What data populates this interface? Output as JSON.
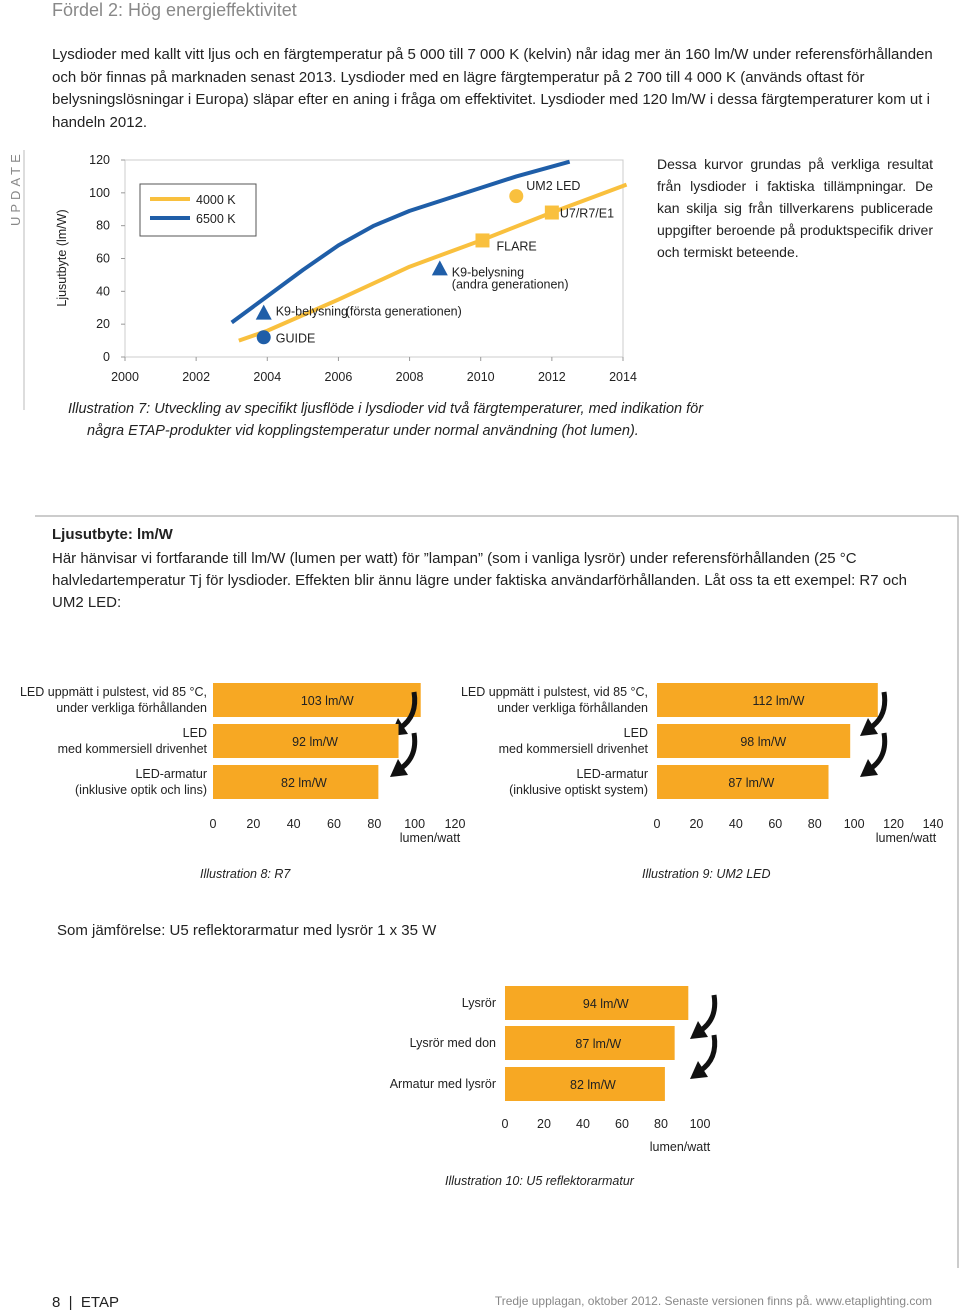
{
  "header": {
    "title": "Fördel 2: Hög energieffektivitet"
  },
  "intro": "Lysdioder med kallt vitt ljus och en färgtemperatur på 5 000 till 7 000 K (kelvin) når idag mer än 160 lm/W under referensförhållanden och bör finnas på marknaden senast 2013. Lysdioder med en lägre färgtemperatur på 2 700 till 4 000 K (används oftast för belysningslösningar i Europa) släpar efter en aning i fråga om effektivitet. Lysdioder med 120 lm/W i dessa färgtemperaturer kom ut i handeln 2012.",
  "side_label": "UPDATE",
  "side_note": "Dessa kurvor grundas på verkliga resultat från lysdioder i faktiska tillämpningar. De kan skilja sig från tillverkarens publicerade uppgifter beroende på produktspecifik driver och termiskt beteende.",
  "chart_data": [
    {
      "type": "line",
      "ylabel": "Ljusutbyte (lm/W)",
      "caption": "Illustration 7: Utveckling av specifikt ljusflöde i lysdioder vid två färgtemperaturer, med indikation för några ETAP-produkter vid kopplingstemperatur under normal användning (hot lumen).",
      "xlim": [
        2000,
        2014
      ],
      "xticks": [
        2000,
        2002,
        2004,
        2006,
        2008,
        2010,
        2012,
        2014
      ],
      "ylim": [
        0,
        120
      ],
      "yticks": [
        0,
        20,
        40,
        60,
        80,
        100,
        120
      ],
      "series": [
        {
          "name": "4000 K",
          "color": "#f9c03e",
          "x": [
            2003.2,
            2004,
            2006,
            2008,
            2010,
            2012,
            2014.1
          ],
          "values": [
            10,
            16,
            35,
            55,
            71,
            88,
            105
          ]
        },
        {
          "name": "6500 K",
          "color": "#1f5ea8",
          "x": [
            2003,
            2004,
            2005,
            2006,
            2007,
            2008,
            2009,
            2010,
            2011,
            2012.5
          ],
          "values": [
            21,
            37,
            53,
            68,
            80,
            89,
            96,
            103,
            110,
            119
          ]
        }
      ],
      "points": [
        {
          "label": "GUIDE",
          "shape": "circle",
          "color": "#1f5ea8",
          "x": 2003.9,
          "y": 12
        },
        {
          "label": "K9-belysning",
          "sublabel": "(första generationen)",
          "shape": "triangle",
          "color": "#1f5ea8",
          "x": 2003.9,
          "y": 27
        },
        {
          "label": "K9-belysning",
          "sublabel": "(andra generationen)",
          "shape": "triangle",
          "color": "#1f5ea8",
          "x": 2008.85,
          "y": 54
        },
        {
          "label": "FLARE",
          "shape": "square",
          "color": "#f9c03e",
          "x": 2010.05,
          "y": 71
        },
        {
          "label": "UM2 LED",
          "shape": "circle",
          "color": "#f9c03e",
          "x": 2011,
          "y": 98
        },
        {
          "label": "U7/R7/E1",
          "shape": "square",
          "color": "#f9c03e",
          "x": 2012,
          "y": 88
        }
      ]
    },
    {
      "type": "barh",
      "caption": "Illustration 8: R7",
      "xlabel": "lumen/watt",
      "color": "#f7a823",
      "categories": [
        [
          "LED uppmätt i pulstest, vid 85 °C,",
          "under verkliga förhållanden"
        ],
        [
          "LED",
          "med kommersiell drivenhet"
        ],
        [
          "LED-armatur",
          "(inklusive optik och lins)"
        ]
      ],
      "values": [
        103,
        92,
        82
      ],
      "value_labels": [
        "103 lm/W",
        "92 lm/W",
        "82 lm/W"
      ],
      "xlim": [
        0,
        120
      ],
      "xticks": [
        0,
        20,
        40,
        60,
        80,
        100,
        120
      ]
    },
    {
      "type": "barh",
      "caption": "Illustration 9: UM2 LED",
      "xlabel": "lumen/watt",
      "color": "#f7a823",
      "categories": [
        [
          "LED uppmätt i pulstest, vid 85 °C,",
          "under verkliga förhållanden"
        ],
        [
          "LED",
          "med kommersiell drivenhet"
        ],
        [
          "LED-armatur",
          "(inklusive optiskt system)"
        ]
      ],
      "values": [
        112,
        98,
        87
      ],
      "value_labels": [
        "112 lm/W",
        "98 lm/W",
        "87 lm/W"
      ],
      "xlim": [
        0,
        140
      ],
      "xticks": [
        0,
        20,
        40,
        60,
        80,
        100,
        120,
        140
      ]
    },
    {
      "type": "barh",
      "caption": "Illustration 10: U5 reflektorarmatur",
      "xlabel": "lumen/watt",
      "color": "#f7a823",
      "categories": [
        [
          "Lysrör"
        ],
        [
          "Lysrör med don"
        ],
        [
          "Armatur med lysrör"
        ]
      ],
      "values": [
        94,
        87,
        82
      ],
      "value_labels": [
        "94 lm/W",
        "87 lm/W",
        "82 lm/W"
      ],
      "xlim": [
        0,
        100
      ],
      "xticks": [
        0,
        20,
        40,
        60,
        80,
        100
      ]
    }
  ],
  "box": {
    "heading": "Ljusutbyte: lm/W",
    "text": "Här hänvisar vi fortfarande till lm/W (lumen per watt) för ”lampan” (som i vanliga lysrör) under referensförhållanden (25 °C halvledartemperatur Tj för lysdioder. Effekten blir ännu lägre under faktiska användarförhållanden. Låt oss ta ett exempel: R7 och UM2 LED:",
    "comparison": "Som jämförelse: U5 reflektorarmatur med lysrör 1 x 35 W"
  },
  "footer": {
    "page": "8",
    "brand": "ETAP",
    "edition": "Tredje upplagan, oktober 2012. Senaste versionen finns på. www.etaplighting.com"
  }
}
